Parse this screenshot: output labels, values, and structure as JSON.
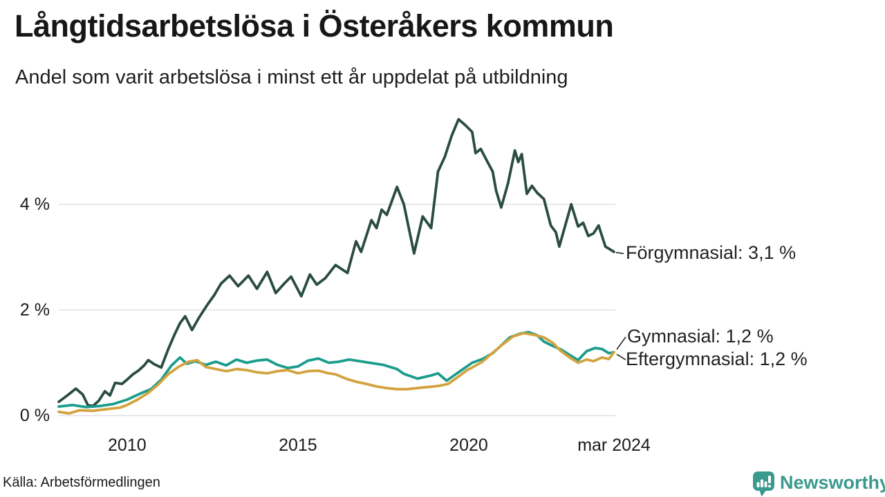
{
  "header": {
    "title": "Långtidsarbetslösa i Österåkers kommun",
    "subtitle": "Andel som varit arbetslösa i minst ett år uppdelat på utbildning"
  },
  "footer": {
    "source": "Källa: Arbetsförmedlingen"
  },
  "logo": {
    "name": "Newsworthy",
    "color": "#3a9a8e"
  },
  "colors": {
    "grid": "#e8e8ea",
    "connector": "#222222",
    "text": "#1a1a1a"
  },
  "chart_data": {
    "type": "line",
    "title": "Långtidsarbetslösa i Österåkers kommun",
    "subtitle": "Andel som varit arbetslösa i minst ett år uppdelat på utbildning",
    "source": "Källa: Arbetsförmedlingen",
    "x_unit": "time, monthly observations from 2008 to mars 2024",
    "y_unit": "percent long-term unemployed",
    "xlim": [
      2008.0,
      2024.25
    ],
    "ylim": [
      0,
      5.8
    ],
    "grid": "horizontal gridlines at 0 %, 2 %, 4 %",
    "legend_position": "direct labels at right edge of lines",
    "y_ticks": [
      {
        "label": "0 %",
        "v": 0
      },
      {
        "label": "2 %",
        "v": 2
      },
      {
        "label": "4 %",
        "v": 4
      }
    ],
    "x_ticks": [
      {
        "label": "2010",
        "t": 2010
      },
      {
        "label": "2015",
        "t": 2015
      },
      {
        "label": "2020",
        "t": 2020
      },
      {
        "label": "mar 2024",
        "t": 2024.25
      }
    ],
    "series": [
      {
        "name": "Förgymnasial",
        "label": "Förgymnasial: 3,1 %",
        "final_value": "3,1 %",
        "color": "#2a4c42",
        "points": [
          [
            2008.0,
            0.26
          ],
          [
            2008.25,
            0.38
          ],
          [
            2008.5,
            0.51
          ],
          [
            2008.7,
            0.4
          ],
          [
            2008.85,
            0.2
          ],
          [
            2009.0,
            0.18
          ],
          [
            2009.17,
            0.28
          ],
          [
            2009.35,
            0.46
          ],
          [
            2009.5,
            0.38
          ],
          [
            2009.65,
            0.62
          ],
          [
            2009.85,
            0.6
          ],
          [
            2010.0,
            0.68
          ],
          [
            2010.17,
            0.78
          ],
          [
            2010.33,
            0.85
          ],
          [
            2010.5,
            0.95
          ],
          [
            2010.62,
            1.05
          ],
          [
            2010.8,
            0.97
          ],
          [
            2011.0,
            0.91
          ],
          [
            2011.2,
            1.25
          ],
          [
            2011.4,
            1.55
          ],
          [
            2011.55,
            1.75
          ],
          [
            2011.7,
            1.88
          ],
          [
            2011.9,
            1.62
          ],
          [
            2012.1,
            1.85
          ],
          [
            2012.35,
            2.1
          ],
          [
            2012.55,
            2.28
          ],
          [
            2012.75,
            2.5
          ],
          [
            2013.0,
            2.65
          ],
          [
            2013.25,
            2.45
          ],
          [
            2013.55,
            2.65
          ],
          [
            2013.8,
            2.4
          ],
          [
            2014.1,
            2.72
          ],
          [
            2014.35,
            2.32
          ],
          [
            2014.6,
            2.5
          ],
          [
            2014.8,
            2.63
          ],
          [
            2015.1,
            2.26
          ],
          [
            2015.35,
            2.67
          ],
          [
            2015.55,
            2.48
          ],
          [
            2015.8,
            2.6
          ],
          [
            2016.1,
            2.85
          ],
          [
            2016.45,
            2.7
          ],
          [
            2016.7,
            3.3
          ],
          [
            2016.85,
            3.1
          ],
          [
            2017.15,
            3.7
          ],
          [
            2017.3,
            3.55
          ],
          [
            2017.45,
            3.9
          ],
          [
            2017.6,
            3.8
          ],
          [
            2017.9,
            4.33
          ],
          [
            2018.1,
            4.0
          ],
          [
            2018.4,
            3.07
          ],
          [
            2018.65,
            3.77
          ],
          [
            2018.9,
            3.55
          ],
          [
            2019.1,
            4.62
          ],
          [
            2019.3,
            4.9
          ],
          [
            2019.5,
            5.3
          ],
          [
            2019.7,
            5.61
          ],
          [
            2019.9,
            5.5
          ],
          [
            2020.1,
            5.37
          ],
          [
            2020.2,
            4.97
          ],
          [
            2020.35,
            5.05
          ],
          [
            2020.55,
            4.8
          ],
          [
            2020.7,
            4.62
          ],
          [
            2020.8,
            4.26
          ],
          [
            2020.95,
            3.94
          ],
          [
            2021.15,
            4.4
          ],
          [
            2021.35,
            5.02
          ],
          [
            2021.45,
            4.8
          ],
          [
            2021.55,
            4.95
          ],
          [
            2021.7,
            4.2
          ],
          [
            2021.85,
            4.35
          ],
          [
            2022.0,
            4.22
          ],
          [
            2022.2,
            4.1
          ],
          [
            2022.4,
            3.6
          ],
          [
            2022.55,
            3.47
          ],
          [
            2022.65,
            3.2
          ],
          [
            2023.0,
            4.0
          ],
          [
            2023.2,
            3.58
          ],
          [
            2023.35,
            3.65
          ],
          [
            2023.5,
            3.4
          ],
          [
            2023.65,
            3.45
          ],
          [
            2023.8,
            3.6
          ],
          [
            2024.0,
            3.2
          ],
          [
            2024.15,
            3.14
          ],
          [
            2024.25,
            3.1
          ]
        ]
      },
      {
        "name": "Gymnasial",
        "label": "Gymnasial: 1,2 %",
        "final_value": "1,2 %",
        "color": "#1a9c8c",
        "points": [
          [
            2008.0,
            0.17
          ],
          [
            2008.4,
            0.2
          ],
          [
            2008.8,
            0.16
          ],
          [
            2009.2,
            0.18
          ],
          [
            2009.6,
            0.22
          ],
          [
            2010.0,
            0.3
          ],
          [
            2010.4,
            0.42
          ],
          [
            2010.7,
            0.5
          ],
          [
            2011.0,
            0.68
          ],
          [
            2011.3,
            0.95
          ],
          [
            2011.55,
            1.1
          ],
          [
            2011.75,
            0.98
          ],
          [
            2012.0,
            1.03
          ],
          [
            2012.3,
            0.96
          ],
          [
            2012.6,
            1.02
          ],
          [
            2012.9,
            0.95
          ],
          [
            2013.2,
            1.06
          ],
          [
            2013.5,
            1.0
          ],
          [
            2013.8,
            1.04
          ],
          [
            2014.1,
            1.06
          ],
          [
            2014.4,
            0.96
          ],
          [
            2014.7,
            0.9
          ],
          [
            2015.0,
            0.93
          ],
          [
            2015.3,
            1.04
          ],
          [
            2015.6,
            1.08
          ],
          [
            2015.9,
            1.0
          ],
          [
            2016.2,
            1.02
          ],
          [
            2016.5,
            1.06
          ],
          [
            2016.8,
            1.03
          ],
          [
            2017.1,
            1.0
          ],
          [
            2017.5,
            0.96
          ],
          [
            2017.9,
            0.88
          ],
          [
            2018.1,
            0.79
          ],
          [
            2018.5,
            0.7
          ],
          [
            2018.9,
            0.76
          ],
          [
            2019.1,
            0.8
          ],
          [
            2019.35,
            0.66
          ],
          [
            2019.7,
            0.82
          ],
          [
            2020.1,
            1.0
          ],
          [
            2020.4,
            1.07
          ],
          [
            2020.7,
            1.18
          ],
          [
            2020.9,
            1.3
          ],
          [
            2021.2,
            1.48
          ],
          [
            2021.5,
            1.55
          ],
          [
            2021.75,
            1.58
          ],
          [
            2022.0,
            1.52
          ],
          [
            2022.2,
            1.4
          ],
          [
            2022.45,
            1.32
          ],
          [
            2022.7,
            1.25
          ],
          [
            2023.0,
            1.13
          ],
          [
            2023.2,
            1.05
          ],
          [
            2023.45,
            1.22
          ],
          [
            2023.7,
            1.28
          ],
          [
            2023.9,
            1.26
          ],
          [
            2024.1,
            1.18
          ],
          [
            2024.25,
            1.2
          ]
        ]
      },
      {
        "name": "Eftergymnasial",
        "label": "Eftergymnasial: 1,2 %",
        "final_value": "1,2 %",
        "color": "#d2a33f",
        "points": [
          [
            2008.0,
            0.07
          ],
          [
            2008.3,
            0.04
          ],
          [
            2008.6,
            0.1
          ],
          [
            2009.0,
            0.09
          ],
          [
            2009.4,
            0.12
          ],
          [
            2009.8,
            0.15
          ],
          [
            2010.0,
            0.2
          ],
          [
            2010.3,
            0.3
          ],
          [
            2010.6,
            0.42
          ],
          [
            2010.9,
            0.58
          ],
          [
            2011.2,
            0.78
          ],
          [
            2011.5,
            0.92
          ],
          [
            2011.8,
            1.02
          ],
          [
            2012.05,
            1.05
          ],
          [
            2012.3,
            0.92
          ],
          [
            2012.6,
            0.88
          ],
          [
            2012.9,
            0.84
          ],
          [
            2013.2,
            0.88
          ],
          [
            2013.5,
            0.86
          ],
          [
            2013.8,
            0.82
          ],
          [
            2014.1,
            0.8
          ],
          [
            2014.4,
            0.84
          ],
          [
            2014.7,
            0.86
          ],
          [
            2015.0,
            0.8
          ],
          [
            2015.3,
            0.84
          ],
          [
            2015.6,
            0.85
          ],
          [
            2015.9,
            0.8
          ],
          [
            2016.1,
            0.78
          ],
          [
            2016.4,
            0.7
          ],
          [
            2016.7,
            0.64
          ],
          [
            2017.0,
            0.6
          ],
          [
            2017.3,
            0.55
          ],
          [
            2017.6,
            0.52
          ],
          [
            2017.9,
            0.5
          ],
          [
            2018.2,
            0.5
          ],
          [
            2018.5,
            0.52
          ],
          [
            2018.8,
            0.54
          ],
          [
            2019.1,
            0.56
          ],
          [
            2019.4,
            0.6
          ],
          [
            2019.7,
            0.74
          ],
          [
            2019.95,
            0.86
          ],
          [
            2020.1,
            0.91
          ],
          [
            2020.4,
            1.02
          ],
          [
            2020.7,
            1.19
          ],
          [
            2021.0,
            1.35
          ],
          [
            2021.3,
            1.5
          ],
          [
            2021.6,
            1.56
          ],
          [
            2021.9,
            1.53
          ],
          [
            2022.2,
            1.48
          ],
          [
            2022.45,
            1.38
          ],
          [
            2022.7,
            1.22
          ],
          [
            2023.0,
            1.08
          ],
          [
            2023.2,
            1.0
          ],
          [
            2023.45,
            1.06
          ],
          [
            2023.65,
            1.03
          ],
          [
            2023.9,
            1.1
          ],
          [
            2024.1,
            1.07
          ],
          [
            2024.25,
            1.2
          ]
        ]
      }
    ]
  }
}
